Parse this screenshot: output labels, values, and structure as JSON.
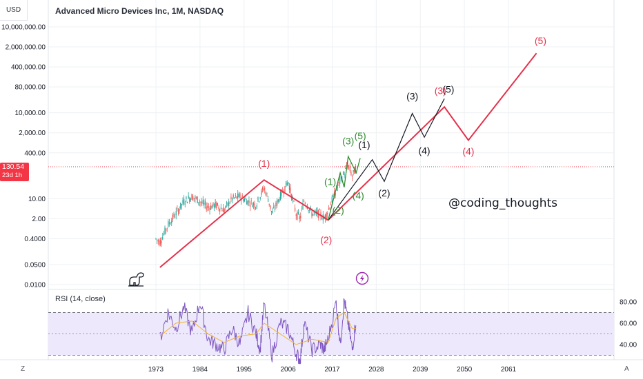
{
  "header": {
    "title": "Advanced Micro Devices Inc, 1M, NASDAQ",
    "currency": "USD"
  },
  "price_badge": {
    "price": "130.54",
    "countdown": "23d 1h"
  },
  "watermark": "@coding_thoughts",
  "rsi_panel": {
    "label": "RSI (14, close)"
  },
  "corner_buttons": {
    "left": "Z",
    "right": "A"
  },
  "colors": {
    "red_wave": "#e5304a",
    "black_wave": "#131722",
    "green_wave": "#2e8b2e",
    "rsi_line": "#7e57c2",
    "rsi_ma": "#f0b428",
    "candle_up": "#26a69a",
    "candle_down": "#ef5350",
    "rsi_band_fill": "#ede8fb",
    "grid": "#eef0f3",
    "price_line": "#f23645",
    "lightning": "#9c27b0"
  },
  "icons": [
    "dinosaur-icon",
    "lightning-icon"
  ],
  "chart_data": [
    {
      "type": "line",
      "scale": "log",
      "x_ticks": [
        "1973",
        "1984",
        "1995",
        "2006",
        "2017",
        "2028",
        "2039",
        "2050",
        "2061"
      ],
      "y_ticks": [
        "10,000,000.00",
        "2,000,000.00",
        "400,000.00",
        "80,000.00",
        "10,000.00",
        "2,000.00",
        "400.00",
        "10.00",
        "2.00",
        "0.4000",
        "0.0500",
        "0.0100"
      ],
      "current_price": 130.54,
      "series": [
        {
          "name": "price",
          "points": [
            [
              1973,
              0.4
            ],
            [
              1974,
              0.3
            ],
            [
              1976,
              1.2
            ],
            [
              1978,
              3
            ],
            [
              1980,
              8
            ],
            [
              1982,
              12
            ],
            [
              1984,
              8
            ],
            [
              1986,
              5
            ],
            [
              1988,
              6
            ],
            [
              1990,
              4
            ],
            [
              1992,
              10
            ],
            [
              1994,
              12
            ],
            [
              1996,
              8
            ],
            [
              1998,
              6
            ],
            [
              2000,
              25
            ],
            [
              2001,
              10
            ],
            [
              2002,
              3
            ],
            [
              2004,
              12
            ],
            [
              2006,
              40
            ],
            [
              2008,
              3
            ],
            [
              2009,
              2
            ],
            [
              2010,
              9
            ],
            [
              2012,
              3
            ],
            [
              2014,
              3
            ],
            [
              2015,
              2
            ],
            [
              2016,
              4
            ],
            [
              2018,
              20
            ],
            [
              2020,
              80
            ],
            [
              2021,
              150
            ],
            [
              2022,
              60
            ],
            [
              2023,
              130
            ]
          ]
        },
        {
          "name": "red wave",
          "points": [
            [
              1974,
              0.04
            ],
            [
              2000,
              45
            ],
            [
              2016,
              1.8
            ],
            [
              2045,
              16000
            ],
            [
              2051,
              1100
            ],
            [
              2068,
              1200000
            ]
          ]
        },
        {
          "name": "black wave",
          "points": [
            [
              2016,
              1.8
            ],
            [
              2027,
              230
            ],
            [
              2030,
              40
            ],
            [
              2037,
              9500
            ],
            [
              2040,
              1400
            ],
            [
              2045,
              31000
            ]
          ]
        },
        {
          "name": "green wave",
          "points": [
            [
              2016,
              1.8
            ],
            [
              2019,
              80
            ],
            [
              2020,
              25
            ],
            [
              2021,
              300
            ],
            [
              2023,
              80
            ],
            [
              2024,
              260
            ]
          ]
        }
      ],
      "annotations": [
        {
          "text": "(1)",
          "x": 2000,
          "y": 130,
          "color": "red"
        },
        {
          "text": "(2)",
          "x": 2015.5,
          "y": 0.28,
          "color": "red"
        },
        {
          "text": "(3)",
          "x": 2044,
          "y": 45000,
          "color": "red"
        },
        {
          "text": "(4)",
          "x": 2051,
          "y": 340,
          "color": "red"
        },
        {
          "text": "(5)",
          "x": 2069,
          "y": 2500000,
          "color": "red"
        },
        {
          "text": "(1)",
          "x": 2025,
          "y": 580,
          "color": "black"
        },
        {
          "text": "(2)",
          "x": 2030,
          "y": 12,
          "color": "black"
        },
        {
          "text": "(3)",
          "x": 2037,
          "y": 29000,
          "color": "black"
        },
        {
          "text": "(4)",
          "x": 2040,
          "y": 360,
          "color": "black"
        },
        {
          "text": "(5)",
          "x": 2046,
          "y": 50000,
          "color": "black"
        },
        {
          "text": "(1)",
          "x": 2016.5,
          "y": 30,
          "color": "green"
        },
        {
          "text": "(2)",
          "x": 2018.5,
          "y": 3,
          "color": "green"
        },
        {
          "text": "(3)",
          "x": 2021,
          "y": 780,
          "color": "green"
        },
        {
          "text": "(4)",
          "x": 2023.5,
          "y": 10,
          "color": "green"
        },
        {
          "text": "(5)",
          "x": 2024,
          "y": 1200,
          "color": "green"
        }
      ]
    },
    {
      "type": "line",
      "title": "RSI (14, close)",
      "y_ticks": [
        "80.00",
        "60.00",
        "40.00"
      ],
      "bands": [
        70,
        50,
        30
      ],
      "series": [
        {
          "name": "RSI",
          "points": [
            [
              1974,
              45
            ],
            [
              1976,
              70
            ],
            [
              1978,
              55
            ],
            [
              1980,
              75
            ],
            [
              1982,
              50
            ],
            [
              1984,
              80
            ],
            [
              1986,
              45
            ],
            [
              1988,
              40
            ],
            [
              1990,
              35
            ],
            [
              1992,
              55
            ],
            [
              1994,
              40
            ],
            [
              1996,
              70
            ],
            [
              1998,
              50
            ],
            [
              1999,
              35
            ],
            [
              2000,
              78
            ],
            [
              2002,
              30
            ],
            [
              2004,
              60
            ],
            [
              2006,
              55
            ],
            [
              2008,
              32
            ],
            [
              2009,
              25
            ],
            [
              2010,
              60
            ],
            [
              2012,
              35
            ],
            [
              2014,
              40
            ],
            [
              2015,
              35
            ],
            [
              2016,
              45
            ],
            [
              2018,
              80
            ],
            [
              2019,
              40
            ],
            [
              2020,
              82
            ],
            [
              2021,
              60
            ],
            [
              2022,
              35
            ],
            [
              2023,
              65
            ]
          ]
        },
        {
          "name": "RSI-based MA",
          "points": [
            [
              1974,
              48
            ],
            [
              1978,
              60
            ],
            [
              1982,
              62
            ],
            [
              1986,
              50
            ],
            [
              1990,
              42
            ],
            [
              1994,
              48
            ],
            [
              1998,
              50
            ],
            [
              2000,
              60
            ],
            [
              2004,
              50
            ],
            [
              2008,
              40
            ],
            [
              2012,
              45
            ],
            [
              2016,
              42
            ],
            [
              2018,
              65
            ],
            [
              2020,
              70
            ],
            [
              2022,
              55
            ],
            [
              2023,
              55
            ]
          ]
        }
      ]
    }
  ]
}
